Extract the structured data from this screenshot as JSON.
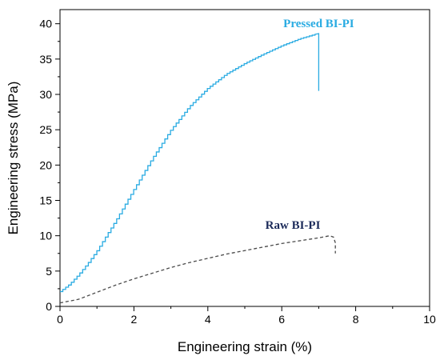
{
  "chart_data": {
    "type": "line",
    "title": "",
    "xlabel": "Engineering strain (%)",
    "ylabel": "Engineering stress (MPa)",
    "xlim": [
      0,
      10
    ],
    "ylim": [
      0,
      42
    ],
    "xticks": [
      0,
      2,
      4,
      6,
      8,
      10
    ],
    "yticks": [
      0,
      5,
      10,
      15,
      20,
      25,
      30,
      35,
      40
    ],
    "grid": false,
    "legend": "none",
    "series": [
      {
        "name": "Pressed BI-PI",
        "color": "#29abe2",
        "style": "solid",
        "x": [
          0,
          0.25,
          0.5,
          0.75,
          1.0,
          1.5,
          2.0,
          2.5,
          3.0,
          3.5,
          4.0,
          4.5,
          5.0,
          5.5,
          6.0,
          6.5,
          6.9,
          7.0,
          7.0
        ],
        "y": [
          2.1,
          3.1,
          4.5,
          6.1,
          7.9,
          12.1,
          16.6,
          21.0,
          25.0,
          28.3,
          30.9,
          32.9,
          34.4,
          35.7,
          36.9,
          37.9,
          38.5,
          38.6,
          30.5
        ]
      },
      {
        "name": "Raw BI-PI",
        "color": "#4a4a4a",
        "style": "dashed",
        "x": [
          0,
          0.5,
          1.0,
          1.5,
          2.0,
          2.5,
          3.0,
          3.5,
          4.0,
          4.5,
          5.0,
          5.5,
          6.0,
          6.5,
          7.0,
          7.3,
          7.4,
          7.45,
          7.45
        ],
        "y": [
          0.5,
          1.0,
          2.0,
          3.0,
          3.9,
          4.7,
          5.5,
          6.2,
          6.8,
          7.4,
          7.9,
          8.4,
          8.9,
          9.3,
          9.7,
          10.0,
          9.8,
          9.0,
          7.5
        ]
      }
    ],
    "annotations": [
      {
        "text": "Pressed BI-PI",
        "x": 7.0,
        "y": 39.5,
        "color": "#29abe2"
      },
      {
        "text": "Raw BI-PI",
        "x": 6.3,
        "y": 11.0,
        "color": "#1c2b5a"
      }
    ]
  }
}
